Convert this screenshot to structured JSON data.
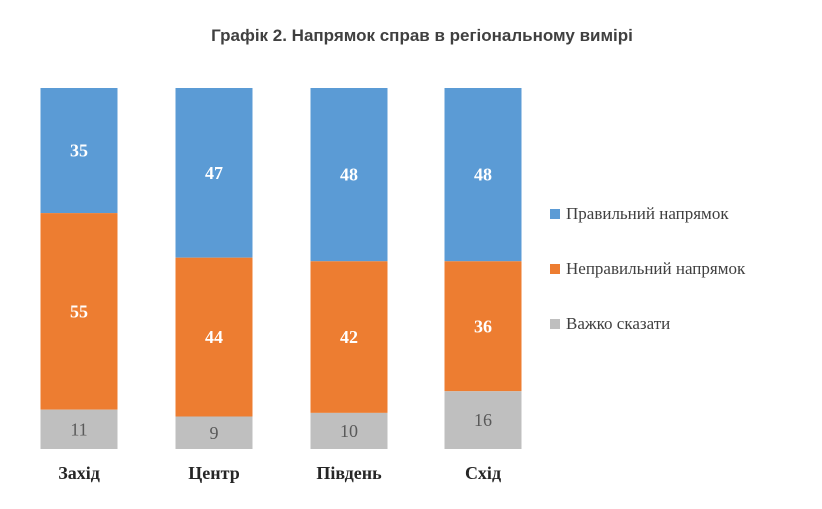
{
  "chart_data": {
    "type": "bar",
    "stacked": true,
    "title": "Графік 2. Напрямок справ в регіональному вимірі",
    "categories": [
      "Захід",
      "Центр",
      "Південь",
      "Схід"
    ],
    "series": [
      {
        "name": "Правильний напрямок",
        "values": [
          35,
          47,
          48,
          48
        ],
        "color": "#5b9bd5"
      },
      {
        "name": "Неправильний напрямок",
        "values": [
          55,
          44,
          42,
          36
        ],
        "color": "#ed7d31"
      },
      {
        "name": "Важко сказати",
        "values": [
          11,
          9,
          10,
          16
        ],
        "color": "#bfbfbf"
      }
    ],
    "xlabel": "",
    "ylabel": "",
    "legend_position": "right",
    "grid": false
  }
}
